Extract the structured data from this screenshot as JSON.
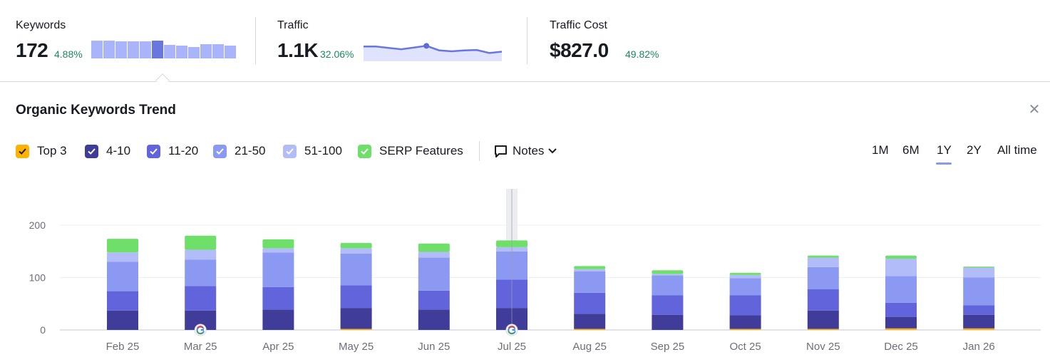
{
  "metrics": {
    "keywords": {
      "title": "Keywords",
      "value": "172",
      "delta": "4.88%"
    },
    "traffic": {
      "title": "Traffic",
      "value": "1.1K",
      "delta": "32.06%"
    },
    "traffic_cost": {
      "title": "Traffic Cost",
      "value": "$827.0",
      "delta": "49.82%"
    }
  },
  "keyword_sparkline": [
    100,
    100,
    95,
    95,
    95,
    100,
    75,
    70,
    65,
    80,
    80,
    70
  ],
  "traffic_sparkline": [
    78,
    78,
    70,
    62,
    72,
    82,
    56,
    50,
    55,
    58,
    40,
    48
  ],
  "panel": {
    "title": "Organic Keywords Trend",
    "close_icon": "close-icon"
  },
  "legend": [
    {
      "label": "Top 3",
      "color": "#ffb200",
      "checked": true
    },
    {
      "label": "4-10",
      "color": "#3f3d99",
      "checked": true
    },
    {
      "label": "11-20",
      "color": "#6264db",
      "checked": true
    },
    {
      "label": "21-50",
      "color": "#8b99f3",
      "checked": true
    },
    {
      "label": "51-100",
      "color": "#b2bcf8",
      "checked": true
    },
    {
      "label": "SERP Features",
      "color": "#6ee06a",
      "checked": true
    }
  ],
  "notes": {
    "label": "Notes",
    "icon": "comment-icon"
  },
  "ranges": [
    {
      "label": "1M",
      "active": false
    },
    {
      "label": "6M",
      "active": false
    },
    {
      "label": "1Y",
      "active": true
    },
    {
      "label": "2Y",
      "active": false
    },
    {
      "label": "All time",
      "active": false
    }
  ],
  "chart_data": {
    "type": "bar",
    "stacked": true,
    "categories": [
      "Feb 25",
      "Mar 25",
      "Apr 25",
      "May 25",
      "Jun 25",
      "Jul 25",
      "Aug 25",
      "Sep 25",
      "Oct 25",
      "Nov 25",
      "Dec 25",
      "Jan 26"
    ],
    "y_ticks": [
      0,
      100,
      200
    ],
    "ylim": [
      0,
      270
    ],
    "grid": true,
    "highlight_category": "Jul 25",
    "google_update_markers": [
      "Mar 25",
      "Jul 25"
    ],
    "series": [
      {
        "name": "Top 3",
        "color": "#ffb200",
        "values": [
          0,
          0,
          0,
          2,
          0,
          0,
          2,
          0,
          2,
          2,
          3,
          3
        ]
      },
      {
        "name": "4-10",
        "color": "#3f3d99",
        "values": [
          37,
          37,
          39,
          40,
          39,
          42,
          29,
          29,
          26,
          35,
          22,
          26
        ]
      },
      {
        "name": "11-20",
        "color": "#6264db",
        "values": [
          37,
          47,
          43,
          43,
          36,
          54,
          40,
          37,
          38,
          41,
          27,
          18
        ]
      },
      {
        "name": "21-50",
        "color": "#8b99f3",
        "values": [
          56,
          50,
          66,
          61,
          63,
          54,
          41,
          38,
          33,
          42,
          51,
          53
        ]
      },
      {
        "name": "51-100",
        "color": "#b2bcf8",
        "values": [
          18,
          19,
          8,
          10,
          11,
          8,
          4,
          3,
          6,
          18,
          33,
          19
        ]
      },
      {
        "name": "SERP Features",
        "color": "#6ee06a",
        "values": [
          26,
          27,
          17,
          10,
          16,
          13,
          6,
          7,
          4,
          4,
          6,
          2
        ]
      }
    ]
  }
}
